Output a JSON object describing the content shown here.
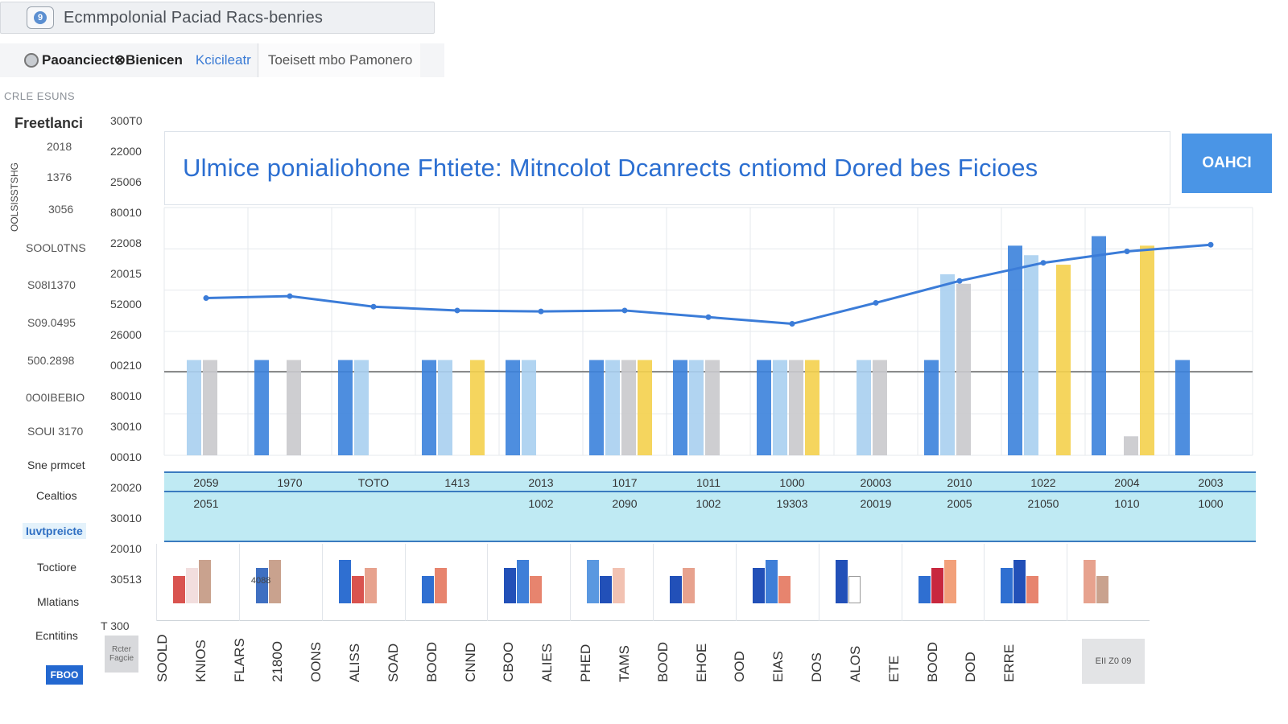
{
  "window": {
    "title": "Ecmmpolonial Paciad Racs-benries",
    "icon": "app-icon"
  },
  "tabs": [
    {
      "label": "Paoanciect⊗Bienicen"
    },
    {
      "label": "Kcicileatr"
    },
    {
      "label": "Toeisett mbo  Pamonero"
    }
  ],
  "sidebar": {
    "caption": "CRLE ESUNS",
    "heading": "Freetlanci",
    "vertical_label": "OOLSISSTSHG",
    "numbers": [
      "2018",
      "1376",
      "3056"
    ],
    "values": [
      "SOOL0TNS",
      "S08I1370",
      "S09.0495",
      "500.2898",
      "0O0IBEBIO",
      "SOUI 3170"
    ],
    "menu": [
      "Sne prmcet",
      "Cealtios",
      "Iuvtpreicte",
      "Toctiore",
      "Mlatians",
      "Ecntitins"
    ],
    "tile_text": "Rcter Fagcie",
    "button_label": "FBOO"
  },
  "banner": {
    "text": "Ulmice ponialiohone Fhtiete: Mitncolot Dcanrects cntiomd Dored bes Ficioes",
    "button_label": "OAHCI"
  },
  "band": {
    "row1": [
      "2059",
      "1970",
      "TOTO",
      "1413",
      "2013",
      "1017",
      "1011",
      "1000",
      "20003",
      "2010",
      "1022",
      "2004",
      "2003"
    ],
    "row2": [
      "2051",
      "",
      "",
      "",
      "1002",
      "2090",
      "1002",
      "19303",
      "20019",
      "2005",
      "21050",
      "1010",
      "1000"
    ]
  },
  "vertical_labels": [
    "SOOLD",
    "KNIOS",
    "FLARS",
    "2180O",
    "OONS",
    "ALISS",
    "SOAD",
    "BOOD",
    "CNND",
    "CBOO",
    "ALIES",
    "PHED",
    "TAMS",
    "BOOD",
    "EHOE",
    "OOD",
    "EIAS",
    "DOS",
    "ALOS",
    "ETE",
    "BOOD",
    "DOD",
    "ERRE"
  ],
  "thumbs": {
    "caption": "4088",
    "end_tile": "EII Z0 09",
    "corner": "T 300"
  },
  "colors": {
    "blue": "#3b82dc",
    "light_blue": "#a9cfef",
    "gray": "#c9c9cc",
    "yellow": "#f4d04c",
    "line": "#3b7cd8",
    "band": "#bfeaf3"
  },
  "chart_data": {
    "type": "bar",
    "title": "Ulmice ponialiohone Fhtiete: Mitncolot Dcanrects cntiomd Dored bes Ficioes",
    "ytick_labels": [
      "300T0",
      "22000",
      "25006",
      "80010",
      "22008",
      "20015",
      "52000",
      "26000",
      "00210",
      "80010",
      "30010",
      "00010",
      "20020",
      "30010",
      "20010",
      "30513"
    ],
    "categories": [
      "2059",
      "1970",
      "TOTO",
      "1413",
      "2013",
      "1017",
      "1011",
      "1000",
      "20003",
      "2010",
      "1022",
      "2004",
      "2003"
    ],
    "series": [
      {
        "name": "Dark blue",
        "color": "#3b82dc",
        "values": [
          0,
          100,
          100,
          100,
          100,
          100,
          100,
          100,
          0,
          100,
          220,
          230,
          100
        ]
      },
      {
        "name": "Light blue",
        "color": "#a9cfef",
        "values": [
          100,
          0,
          100,
          100,
          100,
          100,
          100,
          100,
          100,
          190,
          210,
          0,
          0
        ]
      },
      {
        "name": "Gray",
        "color": "#c9c9cc",
        "values": [
          100,
          100,
          0,
          0,
          0,
          100,
          100,
          100,
          100,
          180,
          0,
          20,
          0
        ]
      },
      {
        "name": "Yellow",
        "color": "#f4d04c",
        "values": [
          0,
          0,
          0,
          100,
          0,
          100,
          0,
          100,
          0,
          0,
          200,
          220,
          0
        ]
      }
    ],
    "line": {
      "name": "Trend",
      "values": [
        165,
        167,
        156,
        152,
        151,
        152,
        145,
        138,
        160,
        183,
        202,
        214,
        221
      ]
    },
    "ylim": [
      0,
      260
    ]
  }
}
